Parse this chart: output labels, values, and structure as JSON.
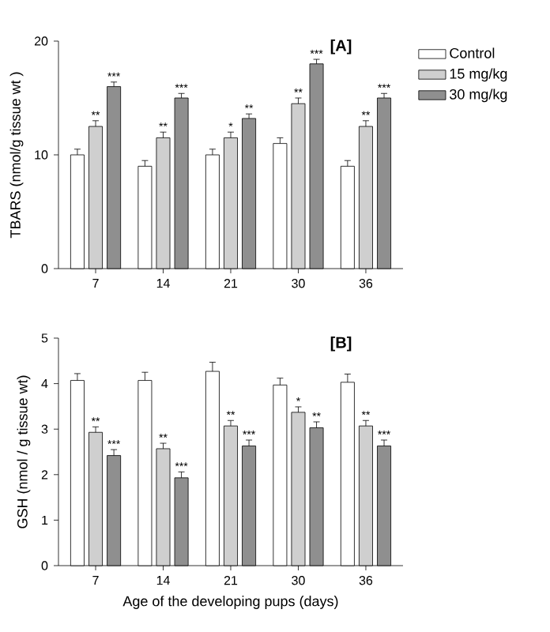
{
  "chart_data": [
    {
      "type": "bar",
      "title": "[A]",
      "ylabel": "TBARS (nmol/g tissue wt )",
      "categories": [
        "7",
        "14",
        "21",
        "30",
        "36"
      ],
      "ylim": [
        0,
        20
      ],
      "yticks": [
        0,
        10,
        20
      ],
      "legend": "top right",
      "series": [
        {
          "name": "Control",
          "color": "#ffffff",
          "values": [
            10,
            9,
            10,
            11,
            9
          ],
          "errors": [
            0.5,
            0.5,
            0.5,
            0.5,
            0.5
          ]
        },
        {
          "name": "15 mg/kg",
          "color": "#cfcfcf",
          "values": [
            12.5,
            11.5,
            11.5,
            14.5,
            12.5
          ],
          "errors": [
            0.5,
            0.5,
            0.5,
            0.5,
            0.5
          ],
          "value_labels": [
            "**",
            "**",
            "*",
            "**",
            "**"
          ]
        },
        {
          "name": "30 mg/kg",
          "color": "#8f8f8f",
          "values": [
            16,
            15,
            13.2,
            18,
            15
          ],
          "errors": [
            0.4,
            0.4,
            0.4,
            0.4,
            0.4
          ],
          "value_labels": [
            "***",
            "***",
            "**",
            "***",
            "***"
          ]
        }
      ]
    },
    {
      "type": "bar",
      "title": "[B]",
      "ylabel": "GSH (nmol / g tissue wt)",
      "xlabel": "Age of the developing pups (days)",
      "categories": [
        "7",
        "14",
        "21",
        "30",
        "36"
      ],
      "ylim": [
        0,
        5
      ],
      "yticks": [
        0,
        1,
        2,
        3,
        4,
        5
      ],
      "series": [
        {
          "color": "#ffffff",
          "values": [
            4.07,
            4.07,
            4.27,
            3.97,
            4.03
          ],
          "errors": [
            0.15,
            0.18,
            0.2,
            0.15,
            0.18
          ]
        },
        {
          "color": "#cfcfcf",
          "values": [
            2.93,
            2.57,
            3.07,
            3.37,
            3.07
          ],
          "errors": [
            0.12,
            0.12,
            0.12,
            0.12,
            0.12
          ],
          "value_labels": [
            "**",
            "**",
            "**",
            "*",
            "**"
          ]
        },
        {
          "color": "#8f8f8f",
          "values": [
            2.42,
            1.93,
            2.63,
            3.03,
            2.63
          ],
          "errors": [
            0.13,
            0.13,
            0.13,
            0.13,
            0.13
          ],
          "value_labels": [
            "***",
            "***",
            "***",
            "**",
            "***"
          ]
        }
      ]
    }
  ]
}
